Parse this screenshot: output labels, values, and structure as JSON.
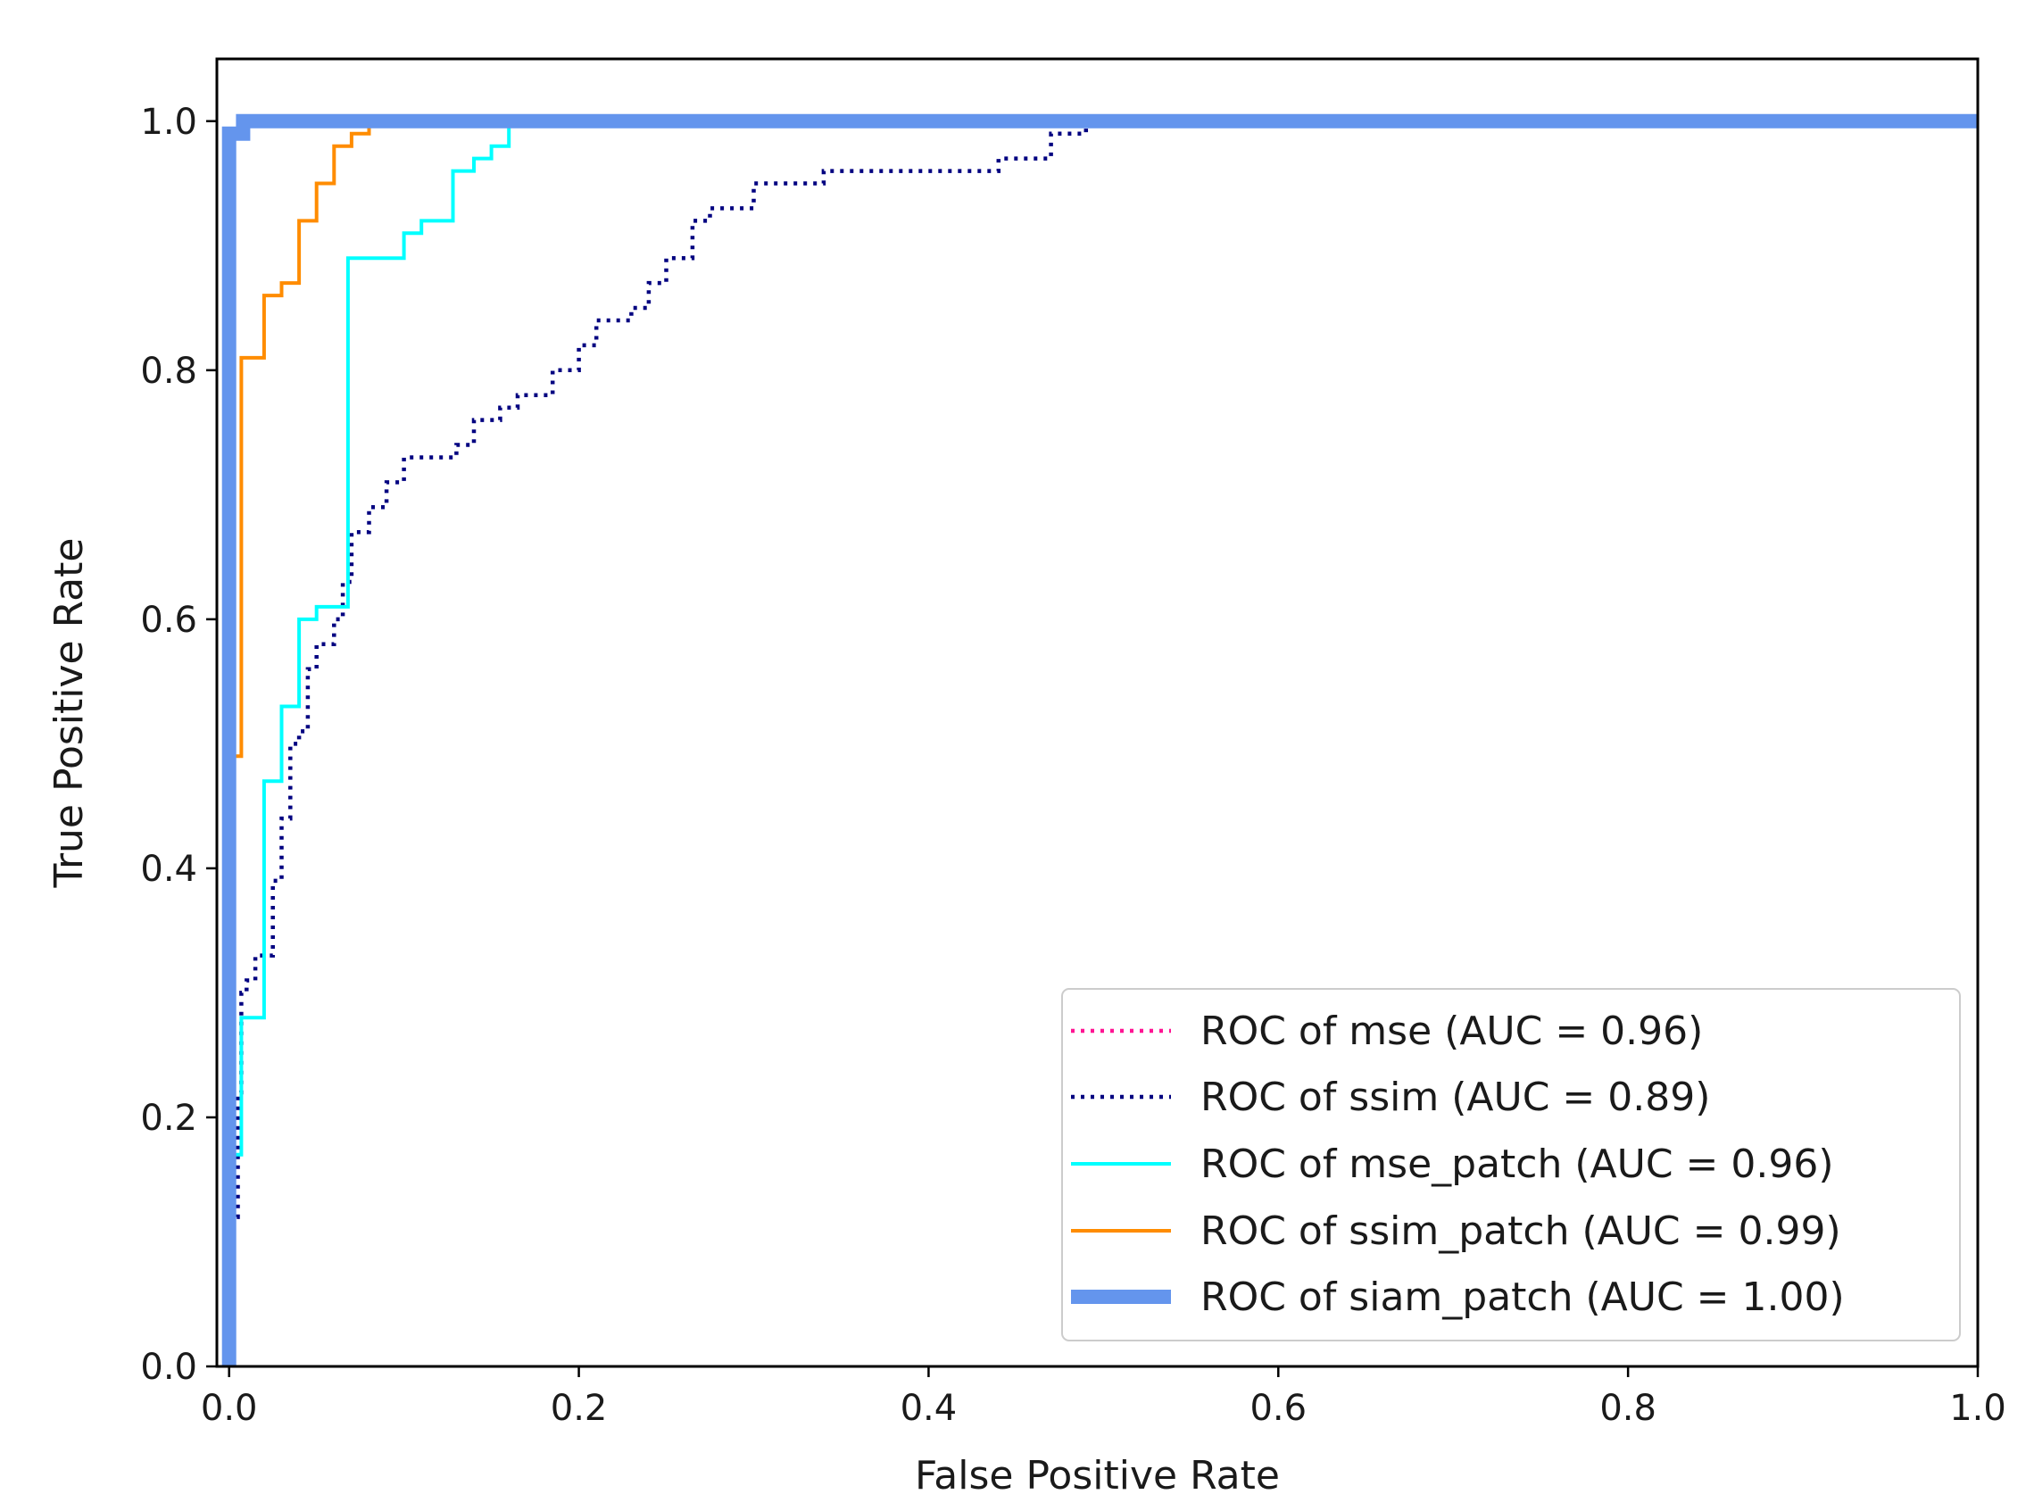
{
  "chart_data": {
    "type": "line",
    "title": "",
    "xlabel": "False Positive Rate",
    "ylabel": "True Positive Rate",
    "xlim": [
      -0.007,
      1.0
    ],
    "ylim": [
      0.0,
      1.05
    ],
    "xticks": [
      0.0,
      0.2,
      0.4,
      0.6,
      0.8,
      1.0
    ],
    "xtick_labels": [
      "0.0",
      "0.2",
      "0.4",
      "0.6",
      "0.8",
      "1.0"
    ],
    "yticks": [
      0.0,
      0.2,
      0.4,
      0.6,
      0.8,
      1.0
    ],
    "ytick_labels": [
      "0.0",
      "0.2",
      "0.4",
      "0.6",
      "0.8",
      "1.0"
    ],
    "grid": false,
    "legend_position": "bottom-right",
    "series": [
      {
        "name": "ROC of mse (AUC = 0.96)",
        "color": "#ff1493",
        "style": "dotted",
        "width": "thin",
        "x": [
          0.0,
          0.0
        ],
        "y": [
          0.0,
          0.0
        ]
      },
      {
        "name": "ROC of ssim (AUC = 0.89)",
        "color": "#000080",
        "style": "dotted",
        "width": "thin",
        "x": [
          0.0,
          0.0,
          0.005,
          0.005,
          0.007,
          0.007,
          0.01,
          0.01,
          0.015,
          0.015,
          0.025,
          0.025,
          0.03,
          0.03,
          0.035,
          0.035,
          0.04,
          0.04,
          0.045,
          0.045,
          0.05,
          0.05,
          0.06,
          0.06,
          0.065,
          0.065,
          0.07,
          0.07,
          0.08,
          0.08,
          0.09,
          0.09,
          0.095,
          0.095,
          0.1,
          0.1,
          0.13,
          0.13,
          0.14,
          0.14,
          0.155,
          0.155,
          0.165,
          0.165,
          0.185,
          0.185,
          0.2,
          0.2,
          0.21,
          0.21,
          0.23,
          0.23,
          0.24,
          0.24,
          0.25,
          0.25,
          0.265,
          0.265,
          0.275,
          0.275,
          0.28,
          0.28,
          0.3,
          0.3,
          0.34,
          0.34,
          0.37,
          0.37,
          0.44,
          0.44,
          0.47,
          0.47,
          0.49,
          0.49,
          0.53,
          0.53,
          1.0
        ],
        "y": [
          0.0,
          0.12,
          0.12,
          0.22,
          0.22,
          0.3,
          0.3,
          0.31,
          0.31,
          0.33,
          0.33,
          0.39,
          0.39,
          0.44,
          0.44,
          0.5,
          0.5,
          0.51,
          0.51,
          0.56,
          0.56,
          0.58,
          0.58,
          0.6,
          0.6,
          0.63,
          0.63,
          0.67,
          0.67,
          0.69,
          0.69,
          0.71,
          0.71,
          0.71,
          0.71,
          0.73,
          0.73,
          0.74,
          0.74,
          0.76,
          0.76,
          0.77,
          0.77,
          0.78,
          0.78,
          0.8,
          0.8,
          0.82,
          0.82,
          0.84,
          0.84,
          0.85,
          0.85,
          0.87,
          0.87,
          0.89,
          0.89,
          0.92,
          0.92,
          0.93,
          0.93,
          0.93,
          0.93,
          0.95,
          0.95,
          0.96,
          0.96,
          0.96,
          0.96,
          0.97,
          0.97,
          0.99,
          0.99,
          1.0,
          1.0,
          1.0,
          1.0
        ]
      },
      {
        "name": "ROC of mse_patch (AUC = 0.96)",
        "color": "#00ffff",
        "style": "solid",
        "width": "normal",
        "x": [
          0.0,
          0.0,
          0.007,
          0.007,
          0.01,
          0.01,
          0.02,
          0.02,
          0.03,
          0.03,
          0.04,
          0.04,
          0.05,
          0.05,
          0.068,
          0.068,
          0.1,
          0.1,
          0.11,
          0.11,
          0.128,
          0.128,
          0.14,
          0.14,
          0.15,
          0.15,
          0.16,
          0.16,
          1.0
        ],
        "y": [
          0.0,
          0.17,
          0.17,
          0.28,
          0.28,
          0.28,
          0.28,
          0.47,
          0.47,
          0.53,
          0.53,
          0.6,
          0.6,
          0.61,
          0.61,
          0.89,
          0.89,
          0.91,
          0.91,
          0.92,
          0.92,
          0.96,
          0.96,
          0.97,
          0.97,
          0.98,
          0.98,
          1.0,
          1.0
        ]
      },
      {
        "name": "ROC of ssim_patch (AUC = 0.99)",
        "color": "#ff8c00",
        "style": "solid",
        "width": "normal",
        "x": [
          0.0,
          0.0,
          0.007,
          0.007,
          0.02,
          0.02,
          0.03,
          0.03,
          0.04,
          0.04,
          0.05,
          0.05,
          0.06,
          0.06,
          0.07,
          0.07,
          0.08,
          0.08
        ],
        "y": [
          0.0,
          0.49,
          0.49,
          0.81,
          0.81,
          0.86,
          0.86,
          0.87,
          0.87,
          0.92,
          0.92,
          0.95,
          0.95,
          0.98,
          0.98,
          0.99,
          0.99,
          1.0
        ]
      },
      {
        "name": "ROC of siam_patch (AUC = 1.00)",
        "color": "#6495ed",
        "style": "solid",
        "width": "thick",
        "x": [
          0.0,
          0.0,
          0.008,
          0.008,
          1.0
        ],
        "y": [
          0.0,
          0.99,
          0.99,
          1.0,
          1.0
        ]
      }
    ]
  }
}
